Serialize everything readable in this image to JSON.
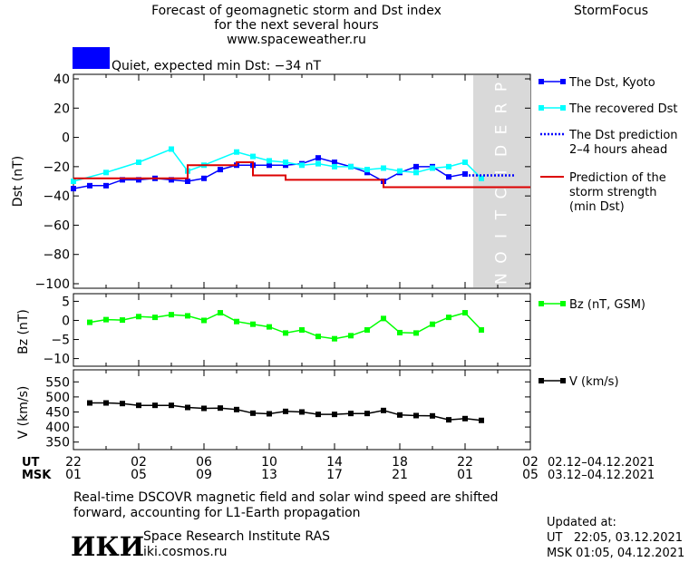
{
  "header": {
    "title_line1": "Forecast of geomagnetic storm and Dst index",
    "title_line2": "for the next several hours",
    "url": "www.spaceweather.ru",
    "brand": "StormFocus",
    "status_text": "Quiet, expected min Dst: −34 nT",
    "status_color": "#0000ff"
  },
  "prediction_label": "PREDICTION",
  "time_axis": {
    "ut_label": "UT",
    "msk_label": "MSK",
    "ut_ticks": [
      "22",
      "02",
      "06",
      "10",
      "14",
      "18",
      "22",
      "02"
    ],
    "msk_ticks": [
      "01",
      "05",
      "09",
      "13",
      "17",
      "21",
      "01",
      "05"
    ],
    "ut_range": "02.12–04.12.2021",
    "msk_range": "03.12–04.12.2021"
  },
  "footer": {
    "note_line1": "Real-time DSCOVR magnetic field and solar wind speed are shifted",
    "note_line2": "forward, accounting for L1-Earth propagation",
    "institute": "Space Research Institute RAS",
    "institute_url": "iki.cosmos.ru",
    "logo_text": "ИКИ",
    "updated_label": "Updated at:",
    "updated_ut": "UT   22:05, 03.12.2021",
    "updated_msk": "MSK 01:05, 04.12.2021"
  },
  "chart_data": [
    {
      "type": "line",
      "ylabel": "Dst (nT)",
      "ylim": [
        -100,
        40
      ],
      "yticks": [
        40,
        20,
        0,
        -20,
        -40,
        -60,
        -80,
        -100
      ],
      "xlim_hours": [
        0,
        28
      ],
      "prediction_region_hours": [
        24.5,
        28
      ],
      "legend_placement": "right",
      "series": [
        {
          "name": "The Dst, Kyoto",
          "color": "#0000ff",
          "style": "line-square",
          "x": [
            0,
            1,
            2,
            3,
            4,
            5,
            6,
            7,
            8,
            9,
            10,
            11,
            12,
            13,
            14,
            15,
            16,
            17,
            18,
            19,
            20,
            21,
            22,
            23,
            24
          ],
          "values": [
            -35,
            -33,
            -33,
            -29,
            -29,
            -28,
            -29,
            -30,
            -28,
            -22,
            -19,
            -19,
            -19,
            -19,
            -18,
            -14,
            -17,
            -20,
            -24,
            -30,
            -24,
            -20,
            -20,
            -27,
            -25
          ]
        },
        {
          "name": "The recovered Dst",
          "color": "#00ffff",
          "style": "line-square",
          "x": [
            0,
            2,
            4,
            6,
            7,
            8,
            10,
            11,
            12,
            13,
            14,
            15,
            16,
            17,
            18,
            19,
            20,
            21,
            22,
            23,
            24,
            25
          ],
          "values": [
            -30,
            -24,
            -17,
            -8,
            -23,
            -19,
            -10,
            -13,
            -16,
            -17,
            -19,
            -18,
            -20,
            -20,
            -22,
            -21,
            -23,
            -24,
            -21,
            -20,
            -17,
            -28
          ]
        },
        {
          "name": "The Dst prediction\n2–4 hours ahead",
          "color": "#0000ff",
          "style": "dotted",
          "x": [
            24,
            27
          ],
          "values": [
            -26,
            -26
          ]
        },
        {
          "name": "Prediction of the\nstorm strength\n(min Dst)",
          "color": "#dd0000",
          "style": "step",
          "x": [
            0,
            6,
            7,
            8,
            9,
            10,
            11,
            12,
            13,
            14,
            15,
            16,
            17,
            18,
            19,
            20,
            21,
            22,
            23,
            24,
            25,
            26,
            27,
            28
          ],
          "values": [
            -28,
            -28,
            -19,
            -19,
            -19,
            -17,
            -26,
            -26,
            -29,
            -29,
            -29,
            -29,
            -29,
            -29,
            -34,
            -34,
            -34,
            -34,
            -34,
            -34,
            -34,
            -34,
            -34,
            -34
          ]
        }
      ]
    },
    {
      "type": "line",
      "ylabel": "Bz (nT)",
      "ylim": [
        -12,
        7
      ],
      "yticks": [
        5,
        0,
        -5,
        -10
      ],
      "series": [
        {
          "name": "Bz (nT, GSM)",
          "color": "#00ff00",
          "style": "line-square",
          "x": [
            1,
            2,
            3,
            4,
            5,
            6,
            7,
            8,
            9,
            10,
            11,
            12,
            13,
            14,
            15,
            16,
            17,
            18,
            19,
            20,
            21,
            22,
            23,
            24,
            25
          ],
          "values": [
            -0.5,
            0.2,
            0.1,
            1,
            0.8,
            1.5,
            1.2,
            0,
            2,
            -0.3,
            -1,
            -1.7,
            -3.3,
            -2.5,
            -4.2,
            -4.8,
            -4,
            -2.5,
            0.5,
            -3.2,
            -3.3,
            -1,
            0.8,
            2,
            -2.5
          ]
        }
      ]
    },
    {
      "type": "line",
      "ylabel": "V (km/s)",
      "ylim": [
        325,
        590
      ],
      "yticks": [
        550,
        500,
        450,
        400,
        350
      ],
      "series": [
        {
          "name": "V (km/s)",
          "color": "#000000",
          "style": "line-square",
          "x": [
            1,
            2,
            3,
            4,
            5,
            6,
            7,
            8,
            9,
            10,
            11,
            12,
            13,
            14,
            15,
            16,
            17,
            18,
            19,
            20,
            21,
            22,
            23,
            24,
            25
          ],
          "values": [
            480,
            480,
            478,
            472,
            472,
            472,
            465,
            462,
            463,
            458,
            446,
            444,
            452,
            450,
            442,
            442,
            445,
            445,
            455,
            440,
            438,
            437,
            424,
            428,
            422
          ]
        }
      ]
    }
  ]
}
